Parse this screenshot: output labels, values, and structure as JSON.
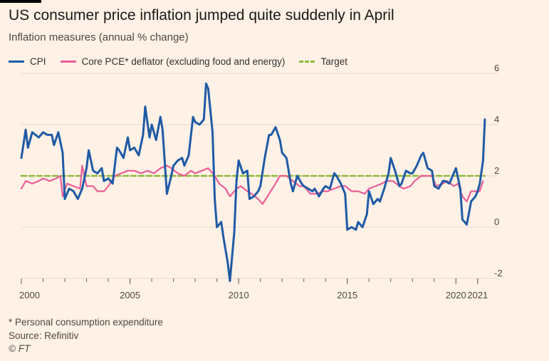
{
  "header": {
    "title": "US consumer price inflation jumped quite suddenly in April",
    "subtitle": "Inflation measures (annual % change)"
  },
  "legend": {
    "cpi": "CPI",
    "pce": "Core PCE* deflator (excluding food and energy)",
    "target": "Target"
  },
  "footer": {
    "note": "* Personal consumption expenditure",
    "source": "Source: Refinitiv",
    "copyright": "© FT"
  },
  "colors": {
    "background": "#fff1e5",
    "cpi": "#1f5aa6",
    "pce": "#ec5e97",
    "target": "#8dba3b",
    "grid": "#e6d9ce"
  },
  "chart_data": {
    "type": "line",
    "title": "US consumer price inflation jumped quite suddenly in April",
    "ylabel": "Inflation measures (annual % change)",
    "xlim": [
      2000,
      2021.4
    ],
    "ylim": [
      -2,
      6
    ],
    "y_ticks": [
      6,
      4,
      2,
      0,
      -2
    ],
    "x_ticks": [
      2000,
      2005,
      2010,
      2015,
      2020,
      2021
    ],
    "x_tick_labels": [
      "2000",
      "2005",
      "2010",
      "2015",
      "2020",
      "2021"
    ],
    "grid": "horizontal",
    "series": [
      {
        "name": "CPI",
        "points": [
          [
            2000.0,
            2.7
          ],
          [
            2000.2,
            3.8
          ],
          [
            2000.3,
            3.1
          ],
          [
            2000.5,
            3.7
          ],
          [
            2000.8,
            3.5
          ],
          [
            2001.0,
            3.7
          ],
          [
            2001.2,
            3.6
          ],
          [
            2001.4,
            3.6
          ],
          [
            2001.5,
            3.2
          ],
          [
            2001.7,
            3.7
          ],
          [
            2001.9,
            2.9
          ],
          [
            2002.0,
            1.1
          ],
          [
            2002.2,
            1.5
          ],
          [
            2002.4,
            1.4
          ],
          [
            2002.6,
            1.1
          ],
          [
            2002.8,
            1.5
          ],
          [
            2003.0,
            2.3
          ],
          [
            2003.1,
            3.0
          ],
          [
            2003.3,
            2.2
          ],
          [
            2003.5,
            2.1
          ],
          [
            2003.7,
            2.3
          ],
          [
            2003.8,
            1.8
          ],
          [
            2004.0,
            1.9
          ],
          [
            2004.2,
            1.7
          ],
          [
            2004.4,
            3.1
          ],
          [
            2004.5,
            3.0
          ],
          [
            2004.7,
            2.7
          ],
          [
            2004.9,
            3.5
          ],
          [
            2005.0,
            3.0
          ],
          [
            2005.2,
            3.1
          ],
          [
            2005.4,
            2.8
          ],
          [
            2005.6,
            3.6
          ],
          [
            2005.7,
            4.7
          ],
          [
            2005.9,
            3.5
          ],
          [
            2006.0,
            4.0
          ],
          [
            2006.2,
            3.4
          ],
          [
            2006.4,
            4.3
          ],
          [
            2006.5,
            3.8
          ],
          [
            2006.7,
            1.3
          ],
          [
            2006.9,
            2.0
          ],
          [
            2007.0,
            2.4
          ],
          [
            2007.2,
            2.6
          ],
          [
            2007.4,
            2.7
          ],
          [
            2007.5,
            2.4
          ],
          [
            2007.7,
            2.8
          ],
          [
            2007.9,
            4.3
          ],
          [
            2008.0,
            4.1
          ],
          [
            2008.2,
            4.0
          ],
          [
            2008.4,
            4.2
          ],
          [
            2008.5,
            5.6
          ],
          [
            2008.6,
            5.4
          ],
          [
            2008.8,
            3.7
          ],
          [
            2008.9,
            1.1
          ],
          [
            2009.0,
            0.0
          ],
          [
            2009.2,
            0.2
          ],
          [
            2009.3,
            -0.4
          ],
          [
            2009.5,
            -1.4
          ],
          [
            2009.6,
            -2.1
          ],
          [
            2009.8,
            -0.2
          ],
          [
            2009.9,
            1.8
          ],
          [
            2010.0,
            2.6
          ],
          [
            2010.2,
            2.1
          ],
          [
            2010.4,
            2.2
          ],
          [
            2010.5,
            1.1
          ],
          [
            2010.7,
            1.2
          ],
          [
            2010.9,
            1.4
          ],
          [
            2011.0,
            1.6
          ],
          [
            2011.2,
            2.7
          ],
          [
            2011.4,
            3.6
          ],
          [
            2011.5,
            3.6
          ],
          [
            2011.7,
            3.9
          ],
          [
            2011.9,
            3.4
          ],
          [
            2012.0,
            2.9
          ],
          [
            2012.2,
            2.7
          ],
          [
            2012.4,
            1.7
          ],
          [
            2012.5,
            1.4
          ],
          [
            2012.7,
            2.0
          ],
          [
            2012.9,
            1.7
          ],
          [
            2013.0,
            1.6
          ],
          [
            2013.2,
            1.5
          ],
          [
            2013.4,
            1.4
          ],
          [
            2013.5,
            1.5
          ],
          [
            2013.7,
            1.2
          ],
          [
            2013.9,
            1.5
          ],
          [
            2014.0,
            1.6
          ],
          [
            2014.2,
            1.5
          ],
          [
            2014.4,
            2.1
          ],
          [
            2014.5,
            2.0
          ],
          [
            2014.7,
            1.7
          ],
          [
            2014.9,
            1.3
          ],
          [
            2015.0,
            -0.1
          ],
          [
            2015.2,
            0.0
          ],
          [
            2015.4,
            -0.1
          ],
          [
            2015.5,
            0.2
          ],
          [
            2015.7,
            0.0
          ],
          [
            2015.9,
            0.5
          ],
          [
            2016.0,
            1.4
          ],
          [
            2016.2,
            0.9
          ],
          [
            2016.4,
            1.1
          ],
          [
            2016.5,
            1.0
          ],
          [
            2016.7,
            1.5
          ],
          [
            2016.9,
            2.1
          ],
          [
            2017.0,
            2.7
          ],
          [
            2017.2,
            2.2
          ],
          [
            2017.4,
            1.6
          ],
          [
            2017.5,
            1.7
          ],
          [
            2017.7,
            2.2
          ],
          [
            2017.9,
            2.1
          ],
          [
            2018.0,
            2.1
          ],
          [
            2018.2,
            2.4
          ],
          [
            2018.4,
            2.8
          ],
          [
            2018.5,
            2.9
          ],
          [
            2018.7,
            2.3
          ],
          [
            2018.9,
            2.2
          ],
          [
            2019.0,
            1.6
          ],
          [
            2019.2,
            1.5
          ],
          [
            2019.4,
            1.8
          ],
          [
            2019.5,
            1.8
          ],
          [
            2019.7,
            1.7
          ],
          [
            2019.9,
            2.1
          ],
          [
            2020.0,
            2.3
          ],
          [
            2020.2,
            1.5
          ],
          [
            2020.3,
            0.3
          ],
          [
            2020.5,
            0.1
          ],
          [
            2020.7,
            1.0
          ],
          [
            2020.9,
            1.2
          ],
          [
            2021.0,
            1.4
          ],
          [
            2021.1,
            1.7
          ],
          [
            2021.25,
            2.6
          ],
          [
            2021.33,
            4.2
          ]
        ]
      },
      {
        "name": "Core PCE* deflator (excluding food and energy)",
        "points": [
          [
            2000.0,
            1.5
          ],
          [
            2000.2,
            1.8
          ],
          [
            2000.5,
            1.7
          ],
          [
            2000.8,
            1.8
          ],
          [
            2001.0,
            1.9
          ],
          [
            2001.3,
            1.8
          ],
          [
            2001.6,
            1.9
          ],
          [
            2001.8,
            2.0
          ],
          [
            2001.9,
            1.2
          ],
          [
            2002.1,
            1.7
          ],
          [
            2002.4,
            1.6
          ],
          [
            2002.7,
            1.5
          ],
          [
            2002.8,
            2.4
          ],
          [
            2003.0,
            1.6
          ],
          [
            2003.3,
            1.6
          ],
          [
            2003.5,
            1.4
          ],
          [
            2003.8,
            1.4
          ],
          [
            2004.0,
            1.6
          ],
          [
            2004.3,
            2.0
          ],
          [
            2004.6,
            2.1
          ],
          [
            2004.9,
            2.2
          ],
          [
            2005.2,
            2.2
          ],
          [
            2005.5,
            2.1
          ],
          [
            2005.8,
            2.2
          ],
          [
            2006.1,
            2.1
          ],
          [
            2006.4,
            2.3
          ],
          [
            2006.7,
            2.4
          ],
          [
            2006.9,
            2.3
          ],
          [
            2007.2,
            2.1
          ],
          [
            2007.5,
            2.0
          ],
          [
            2007.8,
            2.2
          ],
          [
            2008.0,
            2.1
          ],
          [
            2008.3,
            2.2
          ],
          [
            2008.6,
            2.3
          ],
          [
            2008.9,
            2.0
          ],
          [
            2009.1,
            1.7
          ],
          [
            2009.4,
            1.5
          ],
          [
            2009.6,
            1.2
          ],
          [
            2009.9,
            1.5
          ],
          [
            2010.1,
            1.6
          ],
          [
            2010.4,
            1.4
          ],
          [
            2010.6,
            1.3
          ],
          [
            2010.9,
            1.1
          ],
          [
            2011.1,
            0.9
          ],
          [
            2011.4,
            1.3
          ],
          [
            2011.7,
            1.7
          ],
          [
            2011.9,
            2.0
          ],
          [
            2012.2,
            2.0
          ],
          [
            2012.5,
            1.8
          ],
          [
            2012.8,
            1.6
          ],
          [
            2013.0,
            1.6
          ],
          [
            2013.3,
            1.3
          ],
          [
            2013.6,
            1.3
          ],
          [
            2013.9,
            1.4
          ],
          [
            2014.1,
            1.4
          ],
          [
            2014.4,
            1.5
          ],
          [
            2014.7,
            1.6
          ],
          [
            2014.9,
            1.6
          ],
          [
            2015.2,
            1.4
          ],
          [
            2015.5,
            1.4
          ],
          [
            2015.8,
            1.3
          ],
          [
            2016.0,
            1.5
          ],
          [
            2016.3,
            1.6
          ],
          [
            2016.6,
            1.7
          ],
          [
            2016.8,
            1.8
          ],
          [
            2017.1,
            1.8
          ],
          [
            2017.4,
            1.6
          ],
          [
            2017.6,
            1.5
          ],
          [
            2017.9,
            1.6
          ],
          [
            2018.1,
            1.8
          ],
          [
            2018.4,
            2.0
          ],
          [
            2018.6,
            2.0
          ],
          [
            2018.9,
            2.0
          ],
          [
            2019.1,
            1.6
          ],
          [
            2019.4,
            1.7
          ],
          [
            2019.6,
            1.8
          ],
          [
            2019.9,
            1.6
          ],
          [
            2020.1,
            1.7
          ],
          [
            2020.3,
            1.2
          ],
          [
            2020.5,
            1.0
          ],
          [
            2020.7,
            1.4
          ],
          [
            2020.9,
            1.4
          ],
          [
            2021.1,
            1.4
          ],
          [
            2021.25,
            1.8
          ]
        ]
      },
      {
        "name": "Target",
        "points": [
          [
            2000.0,
            2.0
          ],
          [
            2021.33,
            2.0
          ]
        ]
      }
    ]
  }
}
